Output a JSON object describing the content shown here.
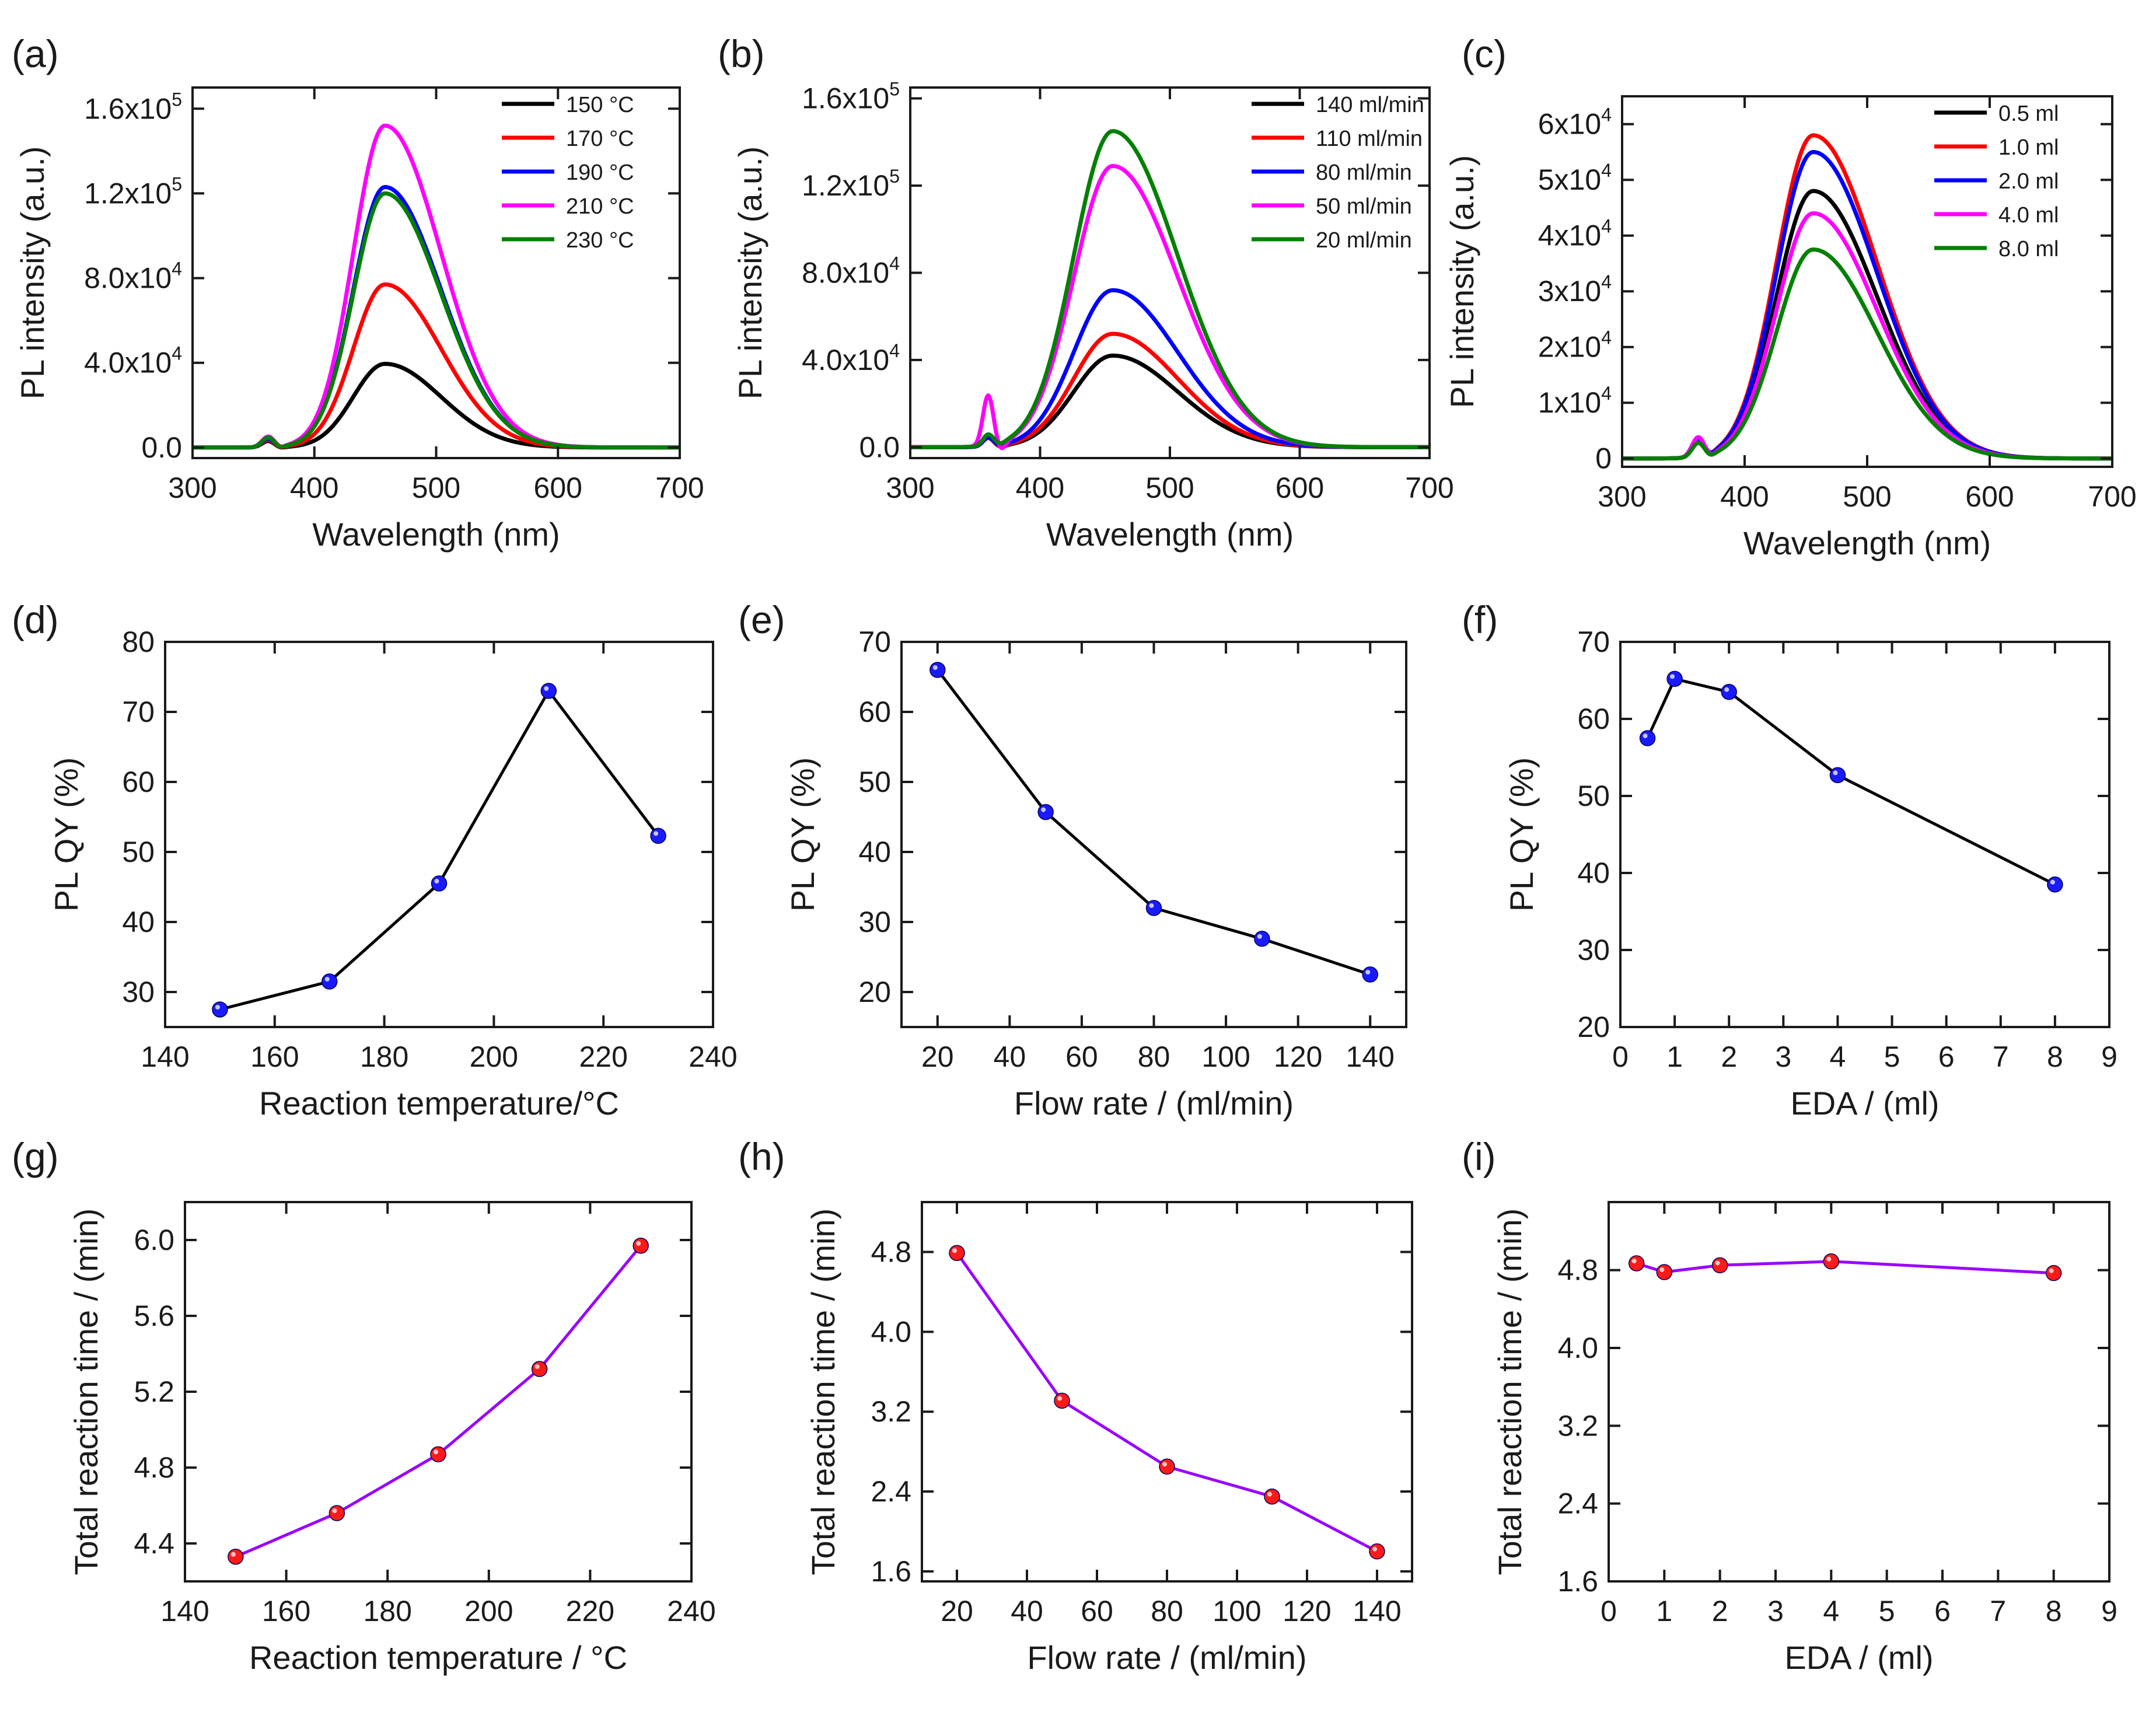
{
  "figure": {
    "background": "#ffffff"
  },
  "chart_data": [
    {
      "id": "a",
      "panel_label": "(a)",
      "type": "line",
      "xlabel": "Wavelength (nm)",
      "ylabel": "PL intensity (a.u.)",
      "xlim": [
        300,
        700
      ],
      "ylim": [
        -5000,
        170000
      ],
      "xticks": [
        300,
        400,
        500,
        600,
        700
      ],
      "yticks": [
        0,
        40000,
        80000,
        120000,
        160000
      ],
      "ytick_labels": [
        [
          "0.0",
          ""
        ],
        [
          "4.0x10",
          "4"
        ],
        [
          "8.0x10",
          "4"
        ],
        [
          "1.2x10",
          "5"
        ],
        [
          "1.6x10",
          "5"
        ]
      ],
      "legend_position": "top-right",
      "spectrum": {
        "center": 458,
        "sigma_left": 26,
        "sigma_right": 46,
        "excitation_peak_at": 362,
        "excitation_width": 5
      },
      "series": [
        {
          "name": "150 °C",
          "color": "#000000",
          "peak": 39500,
          "excitation_peak": 3000
        },
        {
          "name": "170 °C",
          "color": "#ff0000",
          "peak": 77000,
          "excitation_peak": 3500
        },
        {
          "name": "190 °C",
          "color": "#0000ff",
          "peak": 123000,
          "excitation_peak": 4000
        },
        {
          "name": "210 °C",
          "color": "#ff00ff",
          "peak": 152000,
          "excitation_peak": 5000
        },
        {
          "name": "230 °C",
          "color": "#008000",
          "peak": 120000,
          "excitation_peak": 4500
        }
      ]
    },
    {
      "id": "b",
      "panel_label": "(b)",
      "type": "line",
      "xlabel": "Wavelength (nm)",
      "ylabel": "PL intensity (a.u.)",
      "xlim": [
        300,
        700
      ],
      "ylim": [
        -5000,
        165000
      ],
      "xticks": [
        300,
        400,
        500,
        600,
        700
      ],
      "yticks": [
        0,
        40000,
        80000,
        120000,
        160000
      ],
      "ytick_labels": [
        [
          "0.0",
          ""
        ],
        [
          "4.0x10",
          "4"
        ],
        [
          "8.0x10",
          "4"
        ],
        [
          "1.2x10",
          "5"
        ],
        [
          "1.6x10",
          "5"
        ]
      ],
      "legend_position": "top-right",
      "spectrum": {
        "center": 456,
        "sigma_left": 30,
        "sigma_right": 50,
        "excitation_peak_at": 360,
        "excitation_width": 4
      },
      "series": [
        {
          "name": "140 ml/min",
          "color": "#000000",
          "peak": 42000,
          "excitation_peak": 4000
        },
        {
          "name": "110 ml/min",
          "color": "#ff0000",
          "peak": 52000,
          "excitation_peak": 4000
        },
        {
          "name": "80 ml/min",
          "color": "#0000ff",
          "peak": 72000,
          "excitation_peak": 4000
        },
        {
          "name": "50 ml/min",
          "color": "#ff00ff",
          "peak": 129000,
          "excitation_peak": 23000
        },
        {
          "name": "20 ml/min",
          "color": "#008000",
          "peak": 145000,
          "excitation_peak": 5000
        }
      ]
    },
    {
      "id": "c",
      "panel_label": "(c)",
      "type": "line",
      "xlabel": "Wavelength (nm)",
      "ylabel": "PL intensity (a.u.)",
      "xlim": [
        300,
        700
      ],
      "ylim": [
        -1500,
        65000
      ],
      "xticks": [
        300,
        400,
        500,
        600,
        700
      ],
      "yticks": [
        0,
        10000,
        20000,
        30000,
        40000,
        50000,
        60000
      ],
      "ytick_labels": [
        [
          "0",
          ""
        ],
        [
          "1x10",
          "4"
        ],
        [
          "2x10",
          "4"
        ],
        [
          "3x10",
          "4"
        ],
        [
          "4x10",
          "4"
        ],
        [
          "5x10",
          "4"
        ],
        [
          "6x10",
          "4"
        ]
      ],
      "legend_position": "top-right",
      "spectrum": {
        "center": 456,
        "sigma_left": 30,
        "sigma_right": 52,
        "excitation_peak_at": 362,
        "excitation_width": 5
      },
      "series": [
        {
          "name": "0.5 ml",
          "color": "#000000",
          "peak": 48000,
          "excitation_peak": 2500
        },
        {
          "name": "1.0 ml",
          "color": "#ff0000",
          "peak": 58000,
          "excitation_peak": 3000
        },
        {
          "name": "2.0 ml",
          "color": "#0000ff",
          "peak": 55000,
          "excitation_peak": 3000
        },
        {
          "name": "4.0 ml",
          "color": "#ff00ff",
          "peak": 44000,
          "excitation_peak": 3500
        },
        {
          "name": "8.0 ml",
          "color": "#008000",
          "peak": 37500,
          "excitation_peak": 2500
        }
      ]
    },
    {
      "id": "d",
      "panel_label": "(d)",
      "type": "scatter",
      "xlabel": "Reaction temperature/°C",
      "ylabel": "PL QY (%)",
      "xlim": [
        140,
        240
      ],
      "ylim": [
        25,
        80
      ],
      "xticks": [
        140,
        160,
        180,
        200,
        220,
        240
      ],
      "yticks": [
        30,
        40,
        50,
        60,
        70,
        80
      ],
      "line_color": "#000000",
      "marker_color": "#1a1aff",
      "x": [
        150,
        170,
        190,
        210,
        230
      ],
      "y": [
        27.5,
        31.5,
        45.5,
        73,
        52.3
      ]
    },
    {
      "id": "e",
      "panel_label": "(e)",
      "type": "scatter",
      "xlabel": "Flow rate / (ml/min)",
      "ylabel": "PL QY (%)",
      "xlim": [
        10,
        150
      ],
      "ylim": [
        15,
        70
      ],
      "xticks": [
        20,
        40,
        60,
        80,
        100,
        120,
        140
      ],
      "yticks": [
        20,
        30,
        40,
        50,
        60,
        70
      ],
      "line_color": "#000000",
      "marker_color": "#1a1aff",
      "x": [
        20,
        50,
        80,
        110,
        140
      ],
      "y": [
        66,
        45.7,
        32,
        27.6,
        22.5
      ]
    },
    {
      "id": "f",
      "panel_label": "(f)",
      "type": "scatter",
      "xlabel": "EDA / (ml)",
      "ylabel": "PL QY (%)",
      "xlim": [
        0,
        9
      ],
      "ylim": [
        20,
        70
      ],
      "xticks": [
        0,
        1,
        2,
        3,
        4,
        5,
        6,
        7,
        8,
        9
      ],
      "yticks": [
        20,
        30,
        40,
        50,
        60,
        70
      ],
      "line_color": "#000000",
      "marker_color": "#1a1aff",
      "x": [
        0.5,
        1,
        2,
        4,
        8
      ],
      "y": [
        57.5,
        65.2,
        63.5,
        52.7,
        38.5
      ]
    },
    {
      "id": "g",
      "panel_label": "(g)",
      "type": "scatter",
      "xlabel": "Reaction temperature / °C",
      "ylabel": "Total reaction time / (min)",
      "xlim": [
        140,
        240
      ],
      "ylim": [
        4.2,
        6.2
      ],
      "xticks": [
        140,
        160,
        180,
        200,
        220,
        240
      ],
      "yticks": [
        4.4,
        4.8,
        5.2,
        5.6,
        6.0
      ],
      "line_color": "#9900ff",
      "marker_color": "#ff1a1a",
      "x": [
        150,
        170,
        190,
        210,
        230
      ],
      "y": [
        4.33,
        4.56,
        4.87,
        5.32,
        5.97
      ]
    },
    {
      "id": "h",
      "panel_label": "(h)",
      "type": "scatter",
      "xlabel": "Flow rate / (ml/min)",
      "ylabel": "Total reaction time / (min)",
      "xlim": [
        10,
        150
      ],
      "ylim": [
        1.5,
        5.3
      ],
      "xticks": [
        20,
        40,
        60,
        80,
        100,
        120,
        140
      ],
      "yticks": [
        1.6,
        2.4,
        3.2,
        4.0,
        4.8
      ],
      "line_color": "#9900ff",
      "marker_color": "#ff1a1a",
      "x": [
        20,
        50,
        80,
        110,
        140
      ],
      "y": [
        4.79,
        3.31,
        2.65,
        2.35,
        1.8
      ]
    },
    {
      "id": "i",
      "panel_label": "(i)",
      "type": "scatter",
      "xlabel": "EDA / (ml)",
      "ylabel": "Total reaction time / (min)",
      "xlim": [
        0,
        9
      ],
      "ylim": [
        1.6,
        5.5
      ],
      "xticks": [
        0,
        1,
        2,
        3,
        4,
        5,
        6,
        7,
        8,
        9
      ],
      "yticks": [
        1.6,
        2.4,
        3.2,
        4.0,
        4.8
      ],
      "line_color": "#9900ff",
      "marker_color": "#ff1a1a",
      "x": [
        0.5,
        1,
        2,
        4,
        8
      ],
      "y": [
        4.87,
        4.78,
        4.85,
        4.89,
        4.77
      ]
    }
  ]
}
